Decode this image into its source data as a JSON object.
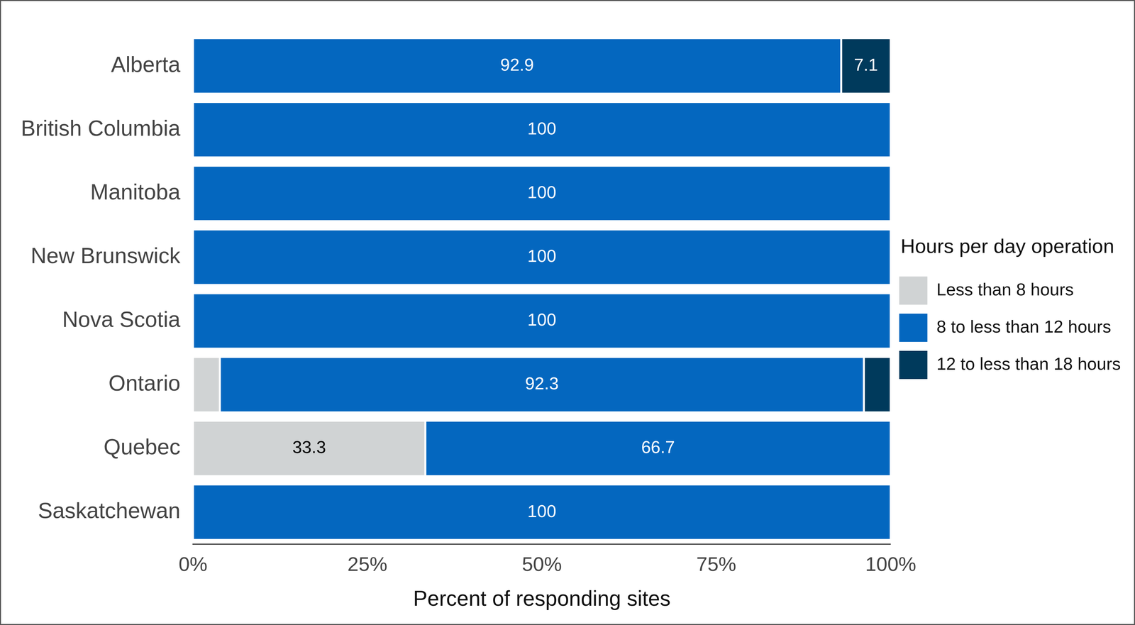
{
  "chart_data": {
    "type": "bar",
    "orientation": "horizontal",
    "stacked": true,
    "categories": [
      "Alberta",
      "British Columbia",
      "Manitoba",
      "New Brunswick",
      "Nova Scotia",
      "Ontario",
      "Quebec",
      "Saskatchewan"
    ],
    "series": [
      {
        "name": "Less than 8 hours",
        "color": "#d0d3d4",
        "values": [
          0,
          0,
          0,
          0,
          0,
          3.85,
          33.3,
          0
        ],
        "value_labels": [
          null,
          null,
          null,
          null,
          null,
          null,
          "33.3",
          null
        ]
      },
      {
        "name": "8 to less than 12 hours",
        "color": "#0467bf",
        "values": [
          92.9,
          100,
          100,
          100,
          100,
          92.3,
          66.7,
          100
        ],
        "value_labels": [
          "92.9",
          "100",
          "100",
          "100",
          "100",
          "92.3",
          "66.7",
          "100"
        ]
      },
      {
        "name": "12 to less than 18 hours",
        "color": "#003a5c",
        "values": [
          7.1,
          0,
          0,
          0,
          0,
          3.85,
          0,
          0
        ],
        "value_labels": [
          "7.1",
          null,
          null,
          null,
          null,
          null,
          null,
          null
        ]
      }
    ],
    "xlim": [
      0,
      100
    ],
    "xticks": [
      {
        "value": 0,
        "label": "0%"
      },
      {
        "value": 25,
        "label": "25%"
      },
      {
        "value": 50,
        "label": "50%"
      },
      {
        "value": 75,
        "label": "75%"
      },
      {
        "value": 100,
        "label": "100%"
      }
    ],
    "xlabel": "Percent of responding sites",
    "legend": "right",
    "legend_title": "Hours per day operation",
    "data_labels": true,
    "grid": false
  }
}
